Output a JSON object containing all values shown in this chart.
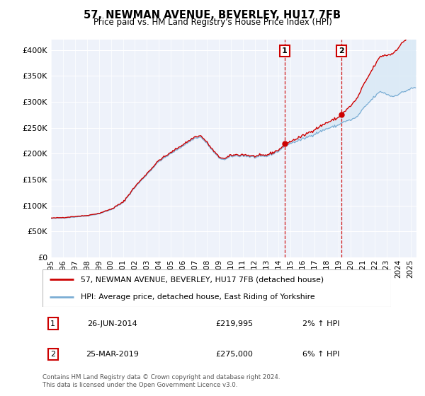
{
  "title": "57, NEWMAN AVENUE, BEVERLEY, HU17 7FB",
  "subtitle": "Price paid vs. HM Land Registry's House Price Index (HPI)",
  "property_label": "57, NEWMAN AVENUE, BEVERLEY, HU17 7FB (detached house)",
  "hpi_label": "HPI: Average price, detached house, East Riding of Yorkshire",
  "footer": "Contains HM Land Registry data © Crown copyright and database right 2024.\nThis data is licensed under the Open Government Licence v3.0.",
  "sale1_label": "1",
  "sale1_date": "26-JUN-2014",
  "sale1_price": "£219,995",
  "sale1_hpi": "2% ↑ HPI",
  "sale2_label": "2",
  "sale2_date": "25-MAR-2019",
  "sale2_price": "£275,000",
  "sale2_hpi": "6% ↑ HPI",
  "sale1_year": 2014.5,
  "sale2_year": 2019.25,
  "sale1_value": 219995,
  "sale2_value": 275000,
  "property_color": "#cc0000",
  "hpi_color": "#7aadd4",
  "hpi_fill_color": "#d8e8f5",
  "background_color": "#eef2fa",
  "ylim": [
    0,
    420000
  ],
  "xlim_start": 1995,
  "xlim_end": 2025.5,
  "yticks": [
    0,
    50000,
    100000,
    150000,
    200000,
    250000,
    300000,
    350000,
    400000
  ]
}
